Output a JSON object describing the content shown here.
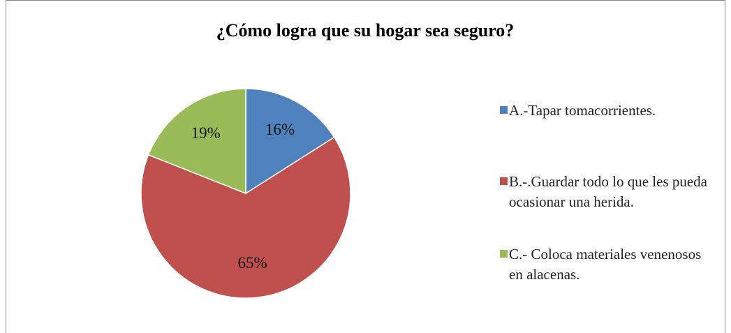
{
  "chart_data": {
    "type": "pie",
    "title": "¿Cómo logra que su hogar sea seguro?",
    "categories": [
      "A.-Tapar tomacorrientes.",
      "B.-.Guardar todo lo que les pueda ocasionar una herida.",
      "C.- Coloca materiales venenosos en alacenas."
    ],
    "values": [
      16,
      65,
      19
    ],
    "value_labels": [
      "16%",
      "65%",
      "19%"
    ],
    "colors": [
      "#4f81bd",
      "#c0504d",
      "#9bbb59"
    ],
    "legend": "right"
  }
}
